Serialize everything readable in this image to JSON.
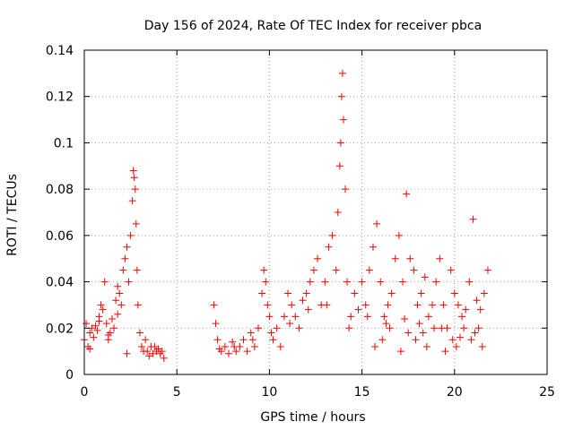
{
  "chart_data": {
    "type": "scatter",
    "title": "Day 156 of 2024, Rate Of TEC Index for receiver pbca",
    "xlabel": "GPS time / hours",
    "ylabel": "ROTI / TECUs",
    "xlim": [
      0,
      25
    ],
    "ylim": [
      0,
      0.14
    ],
    "xticks": [
      "0",
      "5",
      "10",
      "15",
      "20",
      "25"
    ],
    "yticks": [
      "0",
      "0.02",
      "0.04",
      "0.06",
      "0.08",
      "0.1",
      "0.12",
      "0.14"
    ],
    "grid": true,
    "marker": "+",
    "color": "#ff0000",
    "series": [
      {
        "name": "pbca ROTI",
        "x": [
          0.0,
          0.1,
          0.2,
          0.3,
          0.4,
          0.5,
          0.6,
          0.7,
          0.8,
          0.9,
          1.0,
          1.1,
          1.2,
          1.3,
          1.4,
          1.5,
          1.6,
          1.7,
          1.8,
          1.9,
          2.0,
          2.1,
          2.2,
          2.3,
          2.4,
          2.5,
          2.6,
          2.65,
          2.7,
          2.75,
          2.8,
          2.85,
          2.9,
          3.0,
          3.1,
          3.2,
          3.3,
          3.4,
          3.5,
          3.6,
          3.7,
          3.8,
          3.9,
          4.0,
          4.1,
          4.2,
          4.3,
          7.0,
          7.1,
          7.2,
          7.4,
          7.6,
          7.8,
          8.0,
          8.2,
          8.4,
          8.6,
          8.8,
          9.0,
          9.2,
          9.4,
          9.6,
          9.7,
          9.8,
          9.9,
          10.0,
          10.2,
          10.4,
          10.6,
          10.8,
          11.0,
          11.2,
          11.4,
          11.6,
          11.8,
          12.0,
          12.2,
          12.4,
          12.6,
          12.8,
          13.0,
          13.2,
          13.4,
          13.6,
          13.7,
          13.8,
          13.85,
          13.9,
          13.95,
          14.0,
          14.1,
          14.2,
          14.4,
          14.6,
          14.8,
          15.0,
          15.2,
          15.4,
          15.6,
          15.8,
          16.0,
          16.2,
          16.4,
          16.6,
          16.8,
          17.0,
          17.2,
          17.4,
          17.6,
          17.8,
          18.0,
          18.2,
          18.4,
          18.6,
          18.8,
          19.0,
          19.2,
          19.4,
          19.6,
          19.8,
          20.0,
          20.2,
          20.4,
          20.6,
          20.8,
          21.0,
          21.2,
          21.4,
          21.6,
          21.8,
          0.3,
          0.8,
          1.3,
          1.8,
          2.3,
          7.3,
          8.1,
          9.1,
          10.1,
          11.1,
          12.1,
          13.1,
          14.3,
          15.3,
          16.3,
          17.3,
          18.3,
          19.3,
          20.3,
          21.3,
          15.7,
          16.1,
          16.5,
          17.1,
          17.5,
          17.9,
          18.1,
          18.5,
          18.9,
          19.5,
          19.9,
          20.1,
          20.5,
          20.9,
          21.1,
          21.5
        ],
        "y": [
          0.015,
          0.022,
          0.012,
          0.018,
          0.02,
          0.016,
          0.021,
          0.019,
          0.025,
          0.03,
          0.028,
          0.04,
          0.022,
          0.015,
          0.018,
          0.024,
          0.02,
          0.032,
          0.038,
          0.035,
          0.03,
          0.045,
          0.05,
          0.055,
          0.04,
          0.06,
          0.075,
          0.088,
          0.085,
          0.08,
          0.065,
          0.045,
          0.03,
          0.018,
          0.012,
          0.01,
          0.015,
          0.01,
          0.008,
          0.012,
          0.009,
          0.012,
          0.01,
          0.011,
          0.009,
          0.01,
          0.007,
          0.03,
          0.022,
          0.015,
          0.01,
          0.012,
          0.009,
          0.014,
          0.01,
          0.012,
          0.015,
          0.01,
          0.018,
          0.012,
          0.02,
          0.035,
          0.045,
          0.04,
          0.03,
          0.025,
          0.015,
          0.02,
          0.012,
          0.025,
          0.035,
          0.03,
          0.025,
          0.02,
          0.032,
          0.035,
          0.04,
          0.045,
          0.05,
          0.03,
          0.04,
          0.055,
          0.06,
          0.045,
          0.07,
          0.09,
          0.1,
          0.12,
          0.13,
          0.11,
          0.08,
          0.04,
          0.025,
          0.035,
          0.028,
          0.04,
          0.03,
          0.045,
          0.055,
          0.065,
          0.04,
          0.025,
          0.03,
          0.035,
          0.05,
          0.06,
          0.04,
          0.078,
          0.05,
          0.045,
          0.03,
          0.035,
          0.042,
          0.025,
          0.03,
          0.04,
          0.05,
          0.03,
          0.02,
          0.045,
          0.035,
          0.03,
          0.025,
          0.028,
          0.04,
          0.067,
          0.032,
          0.028,
          0.035,
          0.045,
          0.011,
          0.023,
          0.017,
          0.026,
          0.009,
          0.011,
          0.012,
          0.015,
          0.018,
          0.022,
          0.028,
          0.03,
          0.02,
          0.025,
          0.022,
          0.024,
          0.018,
          0.02,
          0.016,
          0.02,
          0.012,
          0.015,
          0.02,
          0.01,
          0.018,
          0.015,
          0.022,
          0.012,
          0.02,
          0.01,
          0.015,
          0.012,
          0.02,
          0.015,
          0.018,
          0.012
        ]
      }
    ]
  }
}
